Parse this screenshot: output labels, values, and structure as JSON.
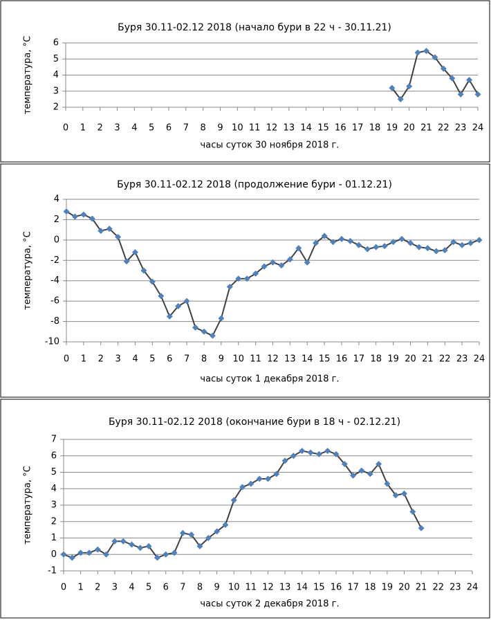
{
  "chart_data": [
    {
      "type": "line",
      "title": "Буря 30.11-02.12 2018 (начало бури в 22 ч - 30.11.21)",
      "xlabel": "часы суток 30 ноября 2018 г.",
      "ylabel": "температура, °С",
      "x": [
        19,
        19.5,
        20,
        20.5,
        21,
        21.5,
        22,
        22.5,
        23,
        23.5,
        24
      ],
      "values": [
        3.2,
        2.5,
        3.3,
        5.4,
        5.5,
        5.1,
        4.4,
        3.8,
        2.8,
        3.7,
        2.8
      ],
      "color": "#4f81bd",
      "line_color": "#404040",
      "xlim": [
        0,
        24
      ],
      "xticks": [
        0,
        1,
        2,
        3,
        4,
        5,
        6,
        7,
        8,
        9,
        10,
        11,
        12,
        13,
        14,
        15,
        16,
        17,
        18,
        19,
        20,
        21,
        22,
        23,
        24
      ],
      "ylim": [
        2,
        6
      ],
      "yticks": [
        2,
        3,
        4,
        5,
        6
      ],
      "grid": true
    },
    {
      "type": "line",
      "title": "Буря 30.11-02.12 2018 (продолжение  бури - 01.12.21)",
      "xlabel": "часы суток 1 декабря 2018 г.",
      "ylabel": "температура, °С",
      "x": [
        0,
        0.5,
        1,
        1.5,
        2,
        2.5,
        3,
        3.5,
        4,
        4.5,
        5,
        5.5,
        6,
        6.5,
        7,
        7.5,
        8,
        8.5,
        9,
        9.5,
        10,
        10.5,
        11,
        11.5,
        12,
        12.5,
        13,
        13.5,
        14,
        14.5,
        15,
        15.5,
        16,
        16.5,
        17,
        17.5,
        18,
        18.5,
        19,
        19.5,
        20,
        20.5,
        21,
        21.5,
        22,
        22.5,
        23,
        23.5,
        24
      ],
      "values": [
        2.8,
        2.3,
        2.5,
        2.1,
        0.9,
        1.1,
        0.3,
        -2.1,
        -1.2,
        -3.0,
        -4.1,
        -5.5,
        -7.5,
        -6.5,
        -6.0,
        -8.6,
        -9.0,
        -9.4,
        -7.7,
        -4.6,
        -3.8,
        -3.8,
        -3.3,
        -2.6,
        -2.2,
        -2.5,
        -1.9,
        -0.8,
        -2.2,
        -0.3,
        0.4,
        -0.2,
        0.1,
        -0.1,
        -0.5,
        -0.9,
        -0.7,
        -0.6,
        -0.2,
        0.1,
        -0.3,
        -0.7,
        -0.8,
        -1.1,
        -1.0,
        -0.2,
        -0.5,
        -0.3,
        0.0
      ],
      "color": "#4f81bd",
      "line_color": "#404040",
      "xlim": [
        0,
        24
      ],
      "xticks": [
        0,
        1,
        2,
        3,
        4,
        5,
        6,
        7,
        8,
        9,
        10,
        11,
        12,
        13,
        14,
        15,
        16,
        17,
        18,
        19,
        20,
        21,
        22,
        23,
        24
      ],
      "ylim": [
        -10,
        4
      ],
      "yticks": [
        -10,
        -8,
        -6,
        -4,
        -2,
        0,
        2,
        4
      ],
      "grid": true
    },
    {
      "type": "line",
      "title": "Буря 30.11-02.12 2018 (окончание  бури в 18 ч - 02.12.21)",
      "xlabel": "часы суток 2 декабря 2018 г.",
      "ylabel": "температура, °С",
      "x": [
        0,
        0.5,
        1,
        1.5,
        2,
        2.5,
        3,
        3.5,
        4,
        4.5,
        5,
        5.5,
        6,
        6.5,
        7,
        7.5,
        8,
        8.5,
        9,
        9.5,
        10,
        10.5,
        11,
        11.5,
        12,
        12.5,
        13,
        13.5,
        14,
        14.5,
        15,
        15.5,
        16,
        16.5,
        17,
        17.5,
        18,
        18.5,
        19,
        19.5,
        20,
        20.5,
        21
      ],
      "values": [
        0,
        -0.2,
        0.1,
        0.1,
        0.3,
        0.0,
        0.8,
        0.8,
        0.6,
        0.4,
        0.5,
        -0.2,
        0.0,
        0.1,
        1.3,
        1.2,
        0.5,
        1.0,
        1.4,
        1.8,
        3.3,
        4.1,
        4.3,
        4.6,
        4.6,
        4.9,
        5.7,
        6.0,
        6.3,
        6.2,
        6.1,
        6.3,
        6.1,
        5.5,
        4.8,
        5.1,
        4.9,
        5.5,
        4.3,
        3.6,
        3.7,
        2.6,
        1.6
      ],
      "color": "#4f81bd",
      "line_color": "#404040",
      "xlim": [
        0,
        24
      ],
      "xticks": [
        0,
        1,
        2,
        3,
        4,
        5,
        6,
        7,
        8,
        9,
        10,
        11,
        12,
        13,
        14,
        15,
        16,
        17,
        18,
        19,
        20,
        21,
        22,
        23,
        24
      ],
      "ylim": [
        -1,
        7
      ],
      "yticks": [
        -1,
        0,
        1,
        2,
        3,
        4,
        5,
        6,
        7
      ],
      "grid": true
    }
  ]
}
